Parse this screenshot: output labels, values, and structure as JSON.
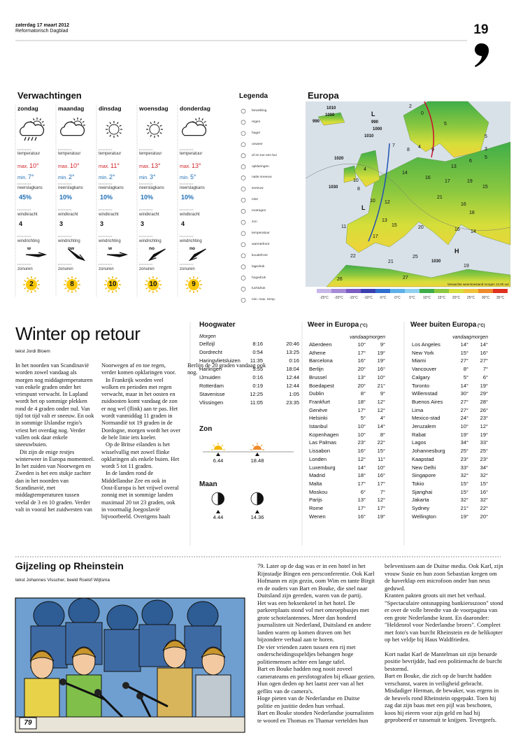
{
  "header": {
    "date": "zaterdag 17 maart 2012",
    "paper": "Reformatorisch Dagblad",
    "page_number": "19"
  },
  "forecast": {
    "title": "Verwachtingen",
    "labels": {
      "temperature": "temperatuur",
      "max": "max.",
      "min": "min.",
      "precipitation": "neerslagkans",
      "wind_force": "windkracht",
      "wind_direction": "windrichting",
      "sun_hours": "zonuren"
    },
    "days": [
      {
        "day": "zondag",
        "max": "10°",
        "min": "7°",
        "precipitation": "45%",
        "wind_force": "4",
        "wind_direction": "w",
        "sun_hours": "2"
      },
      {
        "day": "maandag",
        "max": "10°",
        "min": "2°",
        "precipitation": "10%",
        "wind_force": "3",
        "wind_direction": "nw",
        "sun_hours": "8"
      },
      {
        "day": "dinsdag",
        "max": "11°",
        "min": "2°",
        "precipitation": "10%",
        "wind_force": "3",
        "wind_direction": "w",
        "sun_hours": "10"
      },
      {
        "day": "woensdag",
        "max": "13°",
        "min": "3°",
        "precipitation": "10%",
        "wind_force": "3",
        "wind_direction": "no",
        "sun_hours": "10"
      },
      {
        "day": "donderdag",
        "max": "13°",
        "min": "5°",
        "precipitation": "10%",
        "wind_force": "4",
        "wind_direction": "no",
        "sun_hours": "9"
      }
    ]
  },
  "legend": {
    "title": "Legenda",
    "items": [
      "bewolking",
      "regen",
      "hagel",
      "onweer",
      "af en toe een bui",
      "opklaringen",
      "natte sneeuw",
      "sneeuw",
      "mist",
      "motregen",
      "zon",
      "temperatuur",
      "warmtefront",
      "koudefront",
      "lagedruk",
      "hogedruk",
      "luchtdruk",
      "min. max. temp."
    ]
  },
  "europe_map": {
    "title": "Europa",
    "labels": [
      "1010",
      "1000",
      "990",
      "990",
      "1000",
      "1010",
      "1020",
      "1030",
      "1030",
      "L",
      "L",
      "H",
      "2",
      "0",
      "5",
      "4",
      "8",
      "9",
      "5",
      "3",
      "7",
      "6",
      "5",
      "13",
      "4",
      "10",
      "14",
      "16",
      "17",
      "19",
      "15",
      "8",
      "10",
      "12",
      "21",
      "16",
      "11",
      "13",
      "15",
      "20",
      "18",
      "14",
      "16",
      "17",
      "22",
      "21",
      "25",
      "19",
      "26",
      "27"
    ],
    "caption": "Verwachte weerstoestand morgen 12.00 uur",
    "scale": [
      "-25°C",
      "-20°C",
      "-15°C",
      "-10°C",
      "-5°C",
      "0°C",
      "5°C",
      "10°C",
      "15°C",
      "20°C",
      "25°C",
      "30°C",
      "35°C"
    ]
  },
  "high_water": {
    "title": "Hoogwater",
    "subtitle": "Morgen",
    "rows": [
      [
        "Delfzijl",
        "8:16",
        "20:46"
      ],
      [
        "Dordrecht",
        "0:54",
        "13:25"
      ],
      [
        "Haringvlietsluizen",
        "11:35",
        "0:16"
      ],
      [
        "Harlingen",
        "5:55",
        "18:04"
      ],
      [
        "IJmuiden",
        "0:16",
        "12:44"
      ],
      [
        "Rotterdam",
        "0:19",
        "12:44"
      ],
      [
        "Stavenisse",
        "12:25",
        "1:05"
      ],
      [
        "Vlissingen",
        "11:05",
        "23:35"
      ]
    ]
  },
  "sun": {
    "title": "Zon",
    "rise": "6.44",
    "set": "18.48"
  },
  "moon": {
    "title": "Maan",
    "rise": "4.44",
    "set": "14.36"
  },
  "weather_europe": {
    "title": "Weer in Europa",
    "unit": "(°C)",
    "columns": [
      "vandaag",
      "morgen"
    ],
    "rows": [
      [
        "Aberdeen",
        "10°",
        "9°"
      ],
      [
        "Athene",
        "17°",
        "19°"
      ],
      [
        "Barcelona",
        "16°",
        "19°"
      ],
      [
        "Berlijn",
        "20°",
        "16°"
      ],
      [
        "Brussel",
        "13°",
        "10°"
      ],
      [
        "Boedapest",
        "20°",
        "21°"
      ],
      [
        "Dublin",
        "8°",
        "9°"
      ],
      [
        "Frankfurt",
        "18°",
        "12°"
      ],
      [
        "Genève",
        "17°",
        "12°"
      ],
      [
        "Helsinki",
        "5°",
        "4°"
      ],
      [
        "Istanbul",
        "10°",
        "14°"
      ],
      [
        "Kopenhagen",
        "10°",
        "8°"
      ],
      [
        "Las Palmas",
        "23°",
        "22°"
      ],
      [
        "Lissabon",
        "16°",
        "15°"
      ],
      [
        "Londen",
        "12°",
        "11°"
      ],
      [
        "Luxemburg",
        "14°",
        "10°"
      ],
      [
        "Madrid",
        "18°",
        "16°"
      ],
      [
        "Malta",
        "17°",
        "17°"
      ],
      [
        "Moskou",
        "6°",
        "7°"
      ],
      [
        "Parijs",
        "13°",
        "12°"
      ],
      [
        "Rome",
        "17°",
        "17°"
      ],
      [
        "Wenen",
        "16°",
        "19°"
      ]
    ]
  },
  "weather_world": {
    "title": "Weer buiten Europa",
    "unit": "(°C)",
    "columns": [
      "vandaag",
      "morgen"
    ],
    "rows": [
      [
        "Los Angeles",
        "14°",
        "14°"
      ],
      [
        "New York",
        "15°",
        "16°"
      ],
      [
        "Miami",
        "27°",
        "27°"
      ],
      [
        "Vancouver",
        "8°",
        "7°"
      ],
      [
        "Calgary",
        "5°",
        "6°"
      ],
      [
        "Toronto",
        "14°",
        "19°"
      ],
      [
        "Willemstad",
        "30°",
        "29°"
      ],
      [
        "Buenos Aires",
        "27°",
        "28°"
      ],
      [
        "Lima",
        "27°",
        "26°"
      ],
      [
        "Mexico-stad",
        "24°",
        "23°"
      ],
      [
        "Jeruzalem",
        "10°",
        "12°"
      ],
      [
        "Rabat",
        "19°",
        "19°"
      ],
      [
        "Lagos",
        "34°",
        "33°"
      ],
      [
        "Johannesburg",
        "25°",
        "25°"
      ],
      [
        "Kaapstad",
        "23°",
        "23°"
      ],
      [
        "New Delhi",
        "33°",
        "34°"
      ],
      [
        "Singapore",
        "32°",
        "32°"
      ],
      [
        "Tokio",
        "15°",
        "15°"
      ],
      [
        "Sjanghai",
        "15°",
        "16°"
      ],
      [
        "Jakarta",
        "32°",
        "32°"
      ],
      [
        "Sydney",
        "21°",
        "22°"
      ],
      [
        "Wellington",
        "19°",
        "20°"
      ]
    ]
  },
  "article_winter": {
    "title": "Winter op retour",
    "byline": "tekst Jordi Bloem",
    "paragraphs": [
      "In het noorden van Scandinavië worden zowel vandaag als morgen nog middagtemperaturen van enkele graden onder het vriespunt verwacht. In Lapland wordt het op sommige plekken rond de 4 graden onder nul. Van tijd tot tijd valt er sneeuw. En ook in sommige IJslandse regio's vriest het overdag nog. Verder vallen ook daar enkele sneeuwbuien.",
      "Dit zijn de enige restjes winterweer in Europa momenteel. In het zuiden van Noorwegen en Zweden is het een stukje zachter dan in het noorden van Scandinavië, met middagtemperaturen tussen veelal de 3 en 10 graden. Verder valt in vooral het zuidwesten van Noorwegen af en toe regen, verder komen opklaringen voor.",
      "In Frankrijk worden veel wolken en perioden met regen verwacht, maar in het oosten en zuidoosten komt vandaag de zon er nog wel (flink) aan te pas. Het wordt vanmiddag 11 graden in Normandië tot 19 graden in de Dordogne, morgen wordt het over de hele linie iets koeler.",
      "Op de Britse eilanden is het wisselvallig met zowel flinke opklaringen als enkele buien. Het wordt 5 tot 11 graden.",
      "In de landen rond de Middellandse Zee en ook in Oost-Europa is het vrijwel overal zonnig met in sommige landen maximaal 20 tot 23 graden, ook in voormalig Joegoslavië bijvoorbeeld. Overigens haalt Berlijn de 20 graden vandaag ook nog."
    ]
  },
  "article_serial": {
    "title": "Gijzeling op Rheinstein",
    "byline": "tekst Johannes Visscher, beeld Roelof Wijtsma",
    "comic_number": "79",
    "paragraphs": [
      "79. Later op de dag was er in een hotel in het Rijnstadje Bingen een persconferentie. Ook Karl Hofmann en zijn gezin, oom Wim en tante Birgit en de ouders van Bart en Bouke, die snel naar Duitsland zijn gereden, waren van de partij.",
      "Het was een heksenketel in het hotel. De parkeerplaats stond vol met omroepbusjes met grote schotelantennes. Meer dan honderd journalisten uit Nederland, Duitsland en andere landen waren op komen draven om het bijzondere verhaal aan te horen.",
      "De vier vrienden zaten tussen een rij met onderscheidingsspeldjes behangen hoge politiemensen achter een lange tafel.",
      "Bart en Bouke hadden nog nooit zoveel camerateams en persfotografen bij elkaar gezien. Hun ogen deden op het laatst zeer van al het geflits van de camera's.",
      "Hoge pieten van de Nederlandse en Duitse politie en justitie deden hun verhaal.",
      "Bart en Bouke stonden Nederlandse journalisten te woord en Thomas en Thamar vertelden hun belevenissen aan de Duitse media. Ook Karl, zijn vrouw Susie en hun zoon Sebastian kregen om de haverklap een microfoon onder hun neus geduwd.",
      "Kranten pakten groots uit met het verhaal. \"Spectaculaire ontsnapping bankiersszoon\" stond er over de volle breedte van de voorpagina van een grote Nederlandse krant. En daaronder: \"Heldenrol voor Nederlandse broers\". Compleet met foto's van burcht Rheinstein en de helikopter op het veldje bij Haus Waldfrieden.",
      "Kort nadat Karl de Mantelman uit zijn benarde positie bevrijdde, had een politiemacht de burcht bestormd.",
      "Bart en Bouke, die zich op de burcht hadden verschanst, waren in veiligheid gebracht.",
      "Misdadiger Herman, de bewaker, was ergens in de heuvels rond Rheinstein opgepakt. Toen hij zag dat zijn baas met een pijl was beschoten, koos hij eieren voor zijn geld en had hij geprobeerd er tussenuit te knijpen. Tevergeefs."
    ]
  }
}
